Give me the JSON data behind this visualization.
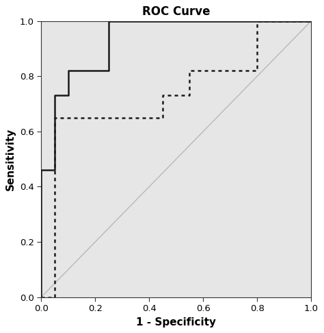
{
  "title": "ROC Curve",
  "xlabel": "1 - Specificity",
  "ylabel": "Sensitivity",
  "xlim": [
    0.0,
    1.0
  ],
  "ylim": [
    0.0,
    1.0
  ],
  "plot_bg_color": "#e6e6e6",
  "fig_bg_color": "#ffffff",
  "solid_line": {
    "x": [
      0.0,
      0.0,
      0.05,
      0.05,
      0.1,
      0.1,
      0.25,
      0.25,
      1.0
    ],
    "y": [
      0.0,
      0.46,
      0.46,
      0.73,
      0.73,
      0.82,
      0.82,
      1.0,
      1.0
    ],
    "color": "#1a1a1a",
    "linewidth": 1.8
  },
  "dashed_line": {
    "x": [
      0.0,
      0.05,
      0.05,
      0.45,
      0.45,
      0.55,
      0.55,
      0.8,
      0.8,
      1.0
    ],
    "y": [
      0.0,
      0.0,
      0.65,
      0.65,
      0.73,
      0.73,
      0.82,
      0.82,
      1.0,
      1.0
    ],
    "color": "#1a1a1a",
    "linewidth": 1.8
  },
  "diagonal": {
    "x": [
      0.0,
      1.0
    ],
    "y": [
      0.0,
      1.0
    ],
    "color": "#b8b8b8",
    "linewidth": 1.0
  },
  "xticks": [
    0.0,
    0.2,
    0.4,
    0.6,
    0.8,
    1.0
  ],
  "yticks": [
    0.0,
    0.2,
    0.4,
    0.6,
    0.8,
    1.0
  ],
  "title_fontsize": 12,
  "axis_label_fontsize": 11,
  "tick_fontsize": 9.5
}
